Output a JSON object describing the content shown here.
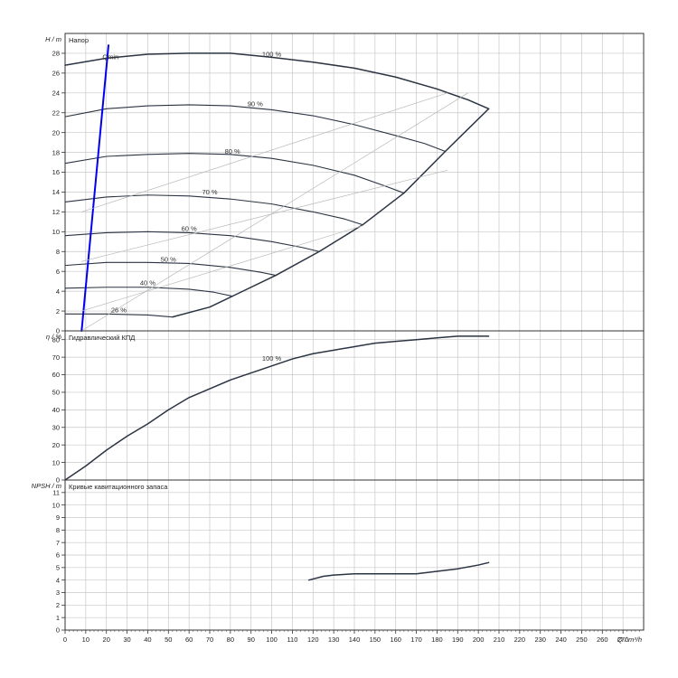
{
  "chart_data": {
    "type": "line",
    "x_axis": {
      "label": "Q / m³/h",
      "range": [
        0,
        280
      ],
      "ticks": [
        0,
        10,
        20,
        30,
        40,
        50,
        60,
        70,
        80,
        90,
        100,
        110,
        120,
        130,
        140,
        150,
        160,
        170,
        180,
        190,
        200,
        210,
        220,
        230,
        240,
        250,
        260,
        270
      ]
    },
    "panels": [
      {
        "id": "head",
        "title": "Напор",
        "ylabel": "H / m",
        "ylim": [
          0,
          30
        ],
        "yticks": [
          0,
          2,
          4,
          6,
          8,
          10,
          12,
          14,
          16,
          18,
          20,
          22,
          24,
          26,
          28
        ],
        "grid": true,
        "series": [
          {
            "name": "100 %",
            "points": [
              [
                0,
                26.8
              ],
              [
                20,
                27.5
              ],
              [
                40,
                27.9
              ],
              [
                60,
                28.0
              ],
              [
                80,
                28.0
              ],
              [
                100,
                27.6
              ],
              [
                120,
                27.1
              ],
              [
                140,
                26.5
              ],
              [
                160,
                25.6
              ],
              [
                180,
                24.4
              ],
              [
                195,
                23.3
              ],
              [
                205,
                22.4
              ]
            ]
          },
          {
            "name": "90 %",
            "points": [
              [
                0,
                21.6
              ],
              [
                20,
                22.4
              ],
              [
                40,
                22.7
              ],
              [
                60,
                22.8
              ],
              [
                80,
                22.7
              ],
              [
                100,
                22.3
              ],
              [
                120,
                21.7
              ],
              [
                140,
                20.8
              ],
              [
                160,
                19.7
              ],
              [
                174,
                18.9
              ],
              [
                184,
                18.1
              ]
            ]
          },
          {
            "name": "80 %",
            "points": [
              [
                0,
                16.9
              ],
              [
                20,
                17.6
              ],
              [
                40,
                17.8
              ],
              [
                60,
                17.9
              ],
              [
                80,
                17.8
              ],
              [
                100,
                17.4
              ],
              [
                120,
                16.7
              ],
              [
                140,
                15.7
              ],
              [
                155,
                14.6
              ],
              [
                164,
                13.9
              ]
            ]
          },
          {
            "name": "70 %",
            "points": [
              [
                0,
                13.0
              ],
              [
                20,
                13.5
              ],
              [
                40,
                13.7
              ],
              [
                60,
                13.6
              ],
              [
                80,
                13.3
              ],
              [
                100,
                12.8
              ],
              [
                120,
                12.0
              ],
              [
                135,
                11.3
              ],
              [
                144,
                10.7
              ]
            ]
          },
          {
            "name": "60 %",
            "points": [
              [
                0,
                9.6
              ],
              [
                20,
                9.9
              ],
              [
                40,
                10.0
              ],
              [
                60,
                9.9
              ],
              [
                80,
                9.6
              ],
              [
                100,
                9.0
              ],
              [
                115,
                8.4
              ],
              [
                123,
                8.0
              ]
            ]
          },
          {
            "name": "50 %",
            "points": [
              [
                0,
                6.6
              ],
              [
                20,
                6.9
              ],
              [
                40,
                6.9
              ],
              [
                60,
                6.8
              ],
              [
                80,
                6.4
              ],
              [
                95,
                5.9
              ],
              [
                102,
                5.6
              ]
            ]
          },
          {
            "name": "40 %",
            "points": [
              [
                0,
                4.3
              ],
              [
                20,
                4.4
              ],
              [
                40,
                4.4
              ],
              [
                60,
                4.2
              ],
              [
                72,
                3.9
              ],
              [
                81,
                3.5
              ]
            ]
          },
          {
            "name": "26 %",
            "points": [
              [
                0,
                1.7
              ],
              [
                20,
                1.7
              ],
              [
                40,
                1.6
              ],
              [
                52,
                1.4
              ]
            ]
          },
          {
            "name": "",
            "style": "envelope",
            "points": [
              [
                52,
                1.4
              ],
              [
                70,
                2.4
              ],
              [
                81,
                3.5
              ],
              [
                102,
                5.6
              ],
              [
                123,
                8.0
              ],
              [
                144,
                10.7
              ],
              [
                164,
                13.9
              ],
              [
                184,
                18.1
              ],
              [
                205,
                22.4
              ]
            ]
          },
          {
            "name": "Qmin",
            "style": "qmin",
            "points": [
              [
                8,
                0
              ],
              [
                21,
                28.8
              ]
            ]
          },
          {
            "name": "",
            "style": "system",
            "points": [
              [
                8,
                0
              ],
              [
                195,
                24
              ]
            ]
          },
          {
            "name": "",
            "style": "system",
            "points": [
              [
                8,
                7
              ],
              [
                185,
                16.2
              ]
            ]
          },
          {
            "name": "",
            "style": "system",
            "points": [
              [
                8,
                2
              ],
              [
                144,
                10.6
              ]
            ]
          },
          {
            "name": "",
            "style": "system",
            "points": [
              [
                8,
                12
              ],
              [
                185,
                24
              ]
            ]
          }
        ],
        "annotations": [
          {
            "text": "100 %",
            "x": 100,
            "y": 27.5
          },
          {
            "text": "90 %",
            "x": 92,
            "y": 22.5
          },
          {
            "text": "80 %",
            "x": 81,
            "y": 17.7
          },
          {
            "text": "70 %",
            "x": 70,
            "y": 13.6
          },
          {
            "text": "60 %",
            "x": 60,
            "y": 9.9
          },
          {
            "text": "50 %",
            "x": 50,
            "y": 6.8
          },
          {
            "text": "40 %",
            "x": 40,
            "y": 4.4
          },
          {
            "text": "26 %",
            "x": 26,
            "y": 1.7
          },
          {
            "text": "Qmin",
            "x": 22,
            "y": 27.2
          }
        ]
      },
      {
        "id": "efficiency",
        "title": "Гидравлический КПД",
        "ylabel": "η / %",
        "ylim": [
          0,
          85
        ],
        "yticks": [
          0,
          10,
          20,
          30,
          40,
          50,
          60,
          70,
          80
        ],
        "grid": true,
        "series": [
          {
            "name": "100 %",
            "points": [
              [
                0,
                0
              ],
              [
                10,
                8
              ],
              [
                20,
                17
              ],
              [
                30,
                25
              ],
              [
                40,
                32
              ],
              [
                50,
                40
              ],
              [
                60,
                47
              ],
              [
                70,
                52
              ],
              [
                80,
                57
              ],
              [
                90,
                61
              ],
              [
                100,
                65
              ],
              [
                110,
                69
              ],
              [
                120,
                72
              ],
              [
                130,
                74
              ],
              [
                140,
                76
              ],
              [
                150,
                78
              ],
              [
                160,
                79
              ],
              [
                170,
                80
              ],
              [
                180,
                81
              ],
              [
                190,
                82
              ],
              [
                205,
                82
              ]
            ]
          }
        ],
        "annotations": [
          {
            "text": "100 %",
            "x": 100,
            "y": 67
          }
        ]
      },
      {
        "id": "npsh",
        "title": "Кривые кавитационного запаса",
        "ylabel": "NPSH / m",
        "ylim": [
          0,
          12
        ],
        "yticks": [
          0,
          1,
          2,
          3,
          4,
          5,
          6,
          7,
          8,
          9,
          10,
          11
        ],
        "grid": true,
        "series": [
          {
            "name": "",
            "points": [
              [
                118,
                4.0
              ],
              [
                125,
                4.3
              ],
              [
                130,
                4.4
              ],
              [
                140,
                4.5
              ],
              [
                150,
                4.5
              ],
              [
                160,
                4.5
              ],
              [
                170,
                4.5
              ],
              [
                180,
                4.7
              ],
              [
                190,
                4.9
              ],
              [
                200,
                5.2
              ],
              [
                205,
                5.4
              ]
            ]
          }
        ]
      }
    ]
  }
}
